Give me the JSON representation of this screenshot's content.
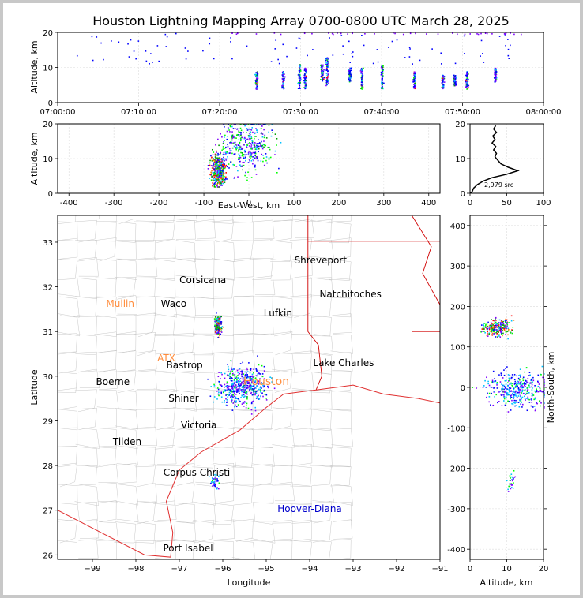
{
  "colors": {
    "frame_border": "#c8c8c8",
    "coastline": "#e03030",
    "state_border": "#d00000",
    "county_border": "#c8c8c8",
    "city_label": "#000000",
    "station_label": "#ff8c3c",
    "storm_label": "#0000cc",
    "src_colors": [
      "#0000ff",
      "#7f00ff",
      "#00c0ff",
      "#00ff00",
      "#00a000",
      "#ff0000",
      "#ff8000"
    ]
  },
  "chart_data": [
    {
      "id": "time-altitude",
      "type": "scatter",
      "title": "Houston Lightning Mapping Array 0700-0800 UTC March 28, 2025",
      "xlabel": "",
      "ylabel": "Altitude, km",
      "xlim": [
        0,
        60
      ],
      "ylim": [
        0,
        20
      ],
      "x_tick_values": [
        0,
        10,
        20,
        30,
        40,
        50,
        60
      ],
      "x_tick_labels": [
        "07:00:00",
        "07:10:00",
        "07:20:00",
        "07:30:00",
        "07:40:00",
        "07:50:00",
        "08:00:00"
      ],
      "y_ticks": [
        0,
        10,
        20
      ],
      "grid": true,
      "columns": [
        {
          "t": 24.5,
          "alt": [
            4,
            9
          ]
        },
        {
          "t": 27.8,
          "alt": [
            4,
            9
          ]
        },
        {
          "t": 29.8,
          "alt": [
            4,
            11
          ]
        },
        {
          "t": 30.5,
          "alt": [
            4,
            10
          ]
        },
        {
          "t": 32.6,
          "alt": [
            6,
            11
          ]
        },
        {
          "t": 33.2,
          "alt": [
            5,
            13
          ]
        },
        {
          "t": 36.0,
          "alt": [
            6,
            10
          ]
        },
        {
          "t": 37.5,
          "alt": [
            4,
            10
          ]
        },
        {
          "t": 40.0,
          "alt": [
            4,
            11
          ]
        },
        {
          "t": 44.0,
          "alt": [
            4,
            9
          ]
        },
        {
          "t": 47.5,
          "alt": [
            4,
            8
          ]
        },
        {
          "t": 49.0,
          "alt": [
            5,
            8
          ]
        },
        {
          "t": 50.5,
          "alt": [
            4,
            9
          ]
        },
        {
          "t": 54.0,
          "alt": [
            6,
            10
          ]
        }
      ]
    },
    {
      "id": "ew-altitude",
      "type": "scatter",
      "xlabel": "East-West, km",
      "ylabel": "Altitude, km",
      "xlim": [
        -425,
        425
      ],
      "ylim": [
        0,
        20
      ],
      "x_ticks": [
        -400,
        -300,
        -200,
        -100,
        0,
        100,
        200,
        300,
        400
      ],
      "y_ticks": [
        0,
        10,
        20
      ],
      "grid": true,
      "clusters": [
        {
          "x": -70,
          "sx": 8,
          "alt": 7,
          "salt": 2.5
        },
        {
          "x": -5,
          "sx": 28,
          "alt": 14,
          "salt": 4
        }
      ]
    },
    {
      "id": "altitude-histogram",
      "type": "line",
      "xlim": [
        0,
        100
      ],
      "ylim": [
        0,
        20
      ],
      "x_ticks": [
        0,
        50,
        100
      ],
      "y_ticks": [
        0,
        10,
        20
      ],
      "annotation": "2,979 src",
      "profile": [
        [
          0,
          0
        ],
        [
          3,
          0.5
        ],
        [
          5,
          1.5
        ],
        [
          10,
          2.5
        ],
        [
          18,
          3.5
        ],
        [
          30,
          4.5
        ],
        [
          50,
          5.5
        ],
        [
          65,
          6.5
        ],
        [
          52,
          7.5
        ],
        [
          42,
          8.5
        ],
        [
          38,
          9.5
        ],
        [
          34,
          10.5
        ],
        [
          36,
          11.5
        ],
        [
          32,
          12.5
        ],
        [
          35,
          13.5
        ],
        [
          30,
          14.5
        ],
        [
          34,
          15.5
        ],
        [
          31,
          16.5
        ],
        [
          36,
          17.5
        ],
        [
          32,
          18.5
        ],
        [
          35,
          19.5
        ]
      ]
    },
    {
      "id": "plan-view",
      "type": "scatter",
      "xlabel": "Longitude",
      "ylabel": "Latitude",
      "xlim": [
        -99.8,
        -91
      ],
      "ylim": [
        25.9,
        33.6
      ],
      "x_ticks": [
        -99,
        -98,
        -97,
        -96,
        -95,
        -94,
        -93,
        -92,
        -91
      ],
      "x_tick_labels": [
        "−99",
        "−98",
        "−97",
        "−96",
        "−95",
        "−94",
        "−93",
        "−92",
        "−91"
      ],
      "y_ticks": [
        26,
        27,
        28,
        29,
        30,
        31,
        32,
        33
      ],
      "city_labels": [
        {
          "name": "Shreveport",
          "lon": -93.75,
          "lat": 32.52,
          "kind": "city"
        },
        {
          "name": "Corsicana",
          "lon": -96.46,
          "lat": 32.08,
          "kind": "city"
        },
        {
          "name": "Natchitoches",
          "lon": -93.06,
          "lat": 31.76,
          "kind": "city"
        },
        {
          "name": "Mullin",
          "lon": -98.36,
          "lat": 31.55,
          "kind": "station"
        },
        {
          "name": "Waco",
          "lon": -97.13,
          "lat": 31.55,
          "kind": "city"
        },
        {
          "name": "Lufkin",
          "lon": -94.73,
          "lat": 31.34,
          "kind": "city"
        },
        {
          "name": "ATX",
          "lon": -97.3,
          "lat": 30.33,
          "kind": "station"
        },
        {
          "name": "Bastrop",
          "lon": -96.88,
          "lat": 30.17,
          "kind": "city"
        },
        {
          "name": "Lake Charles",
          "lon": -93.22,
          "lat": 30.23,
          "kind": "city"
        },
        {
          "name": "Boerne",
          "lon": -98.53,
          "lat": 29.8,
          "kind": "city"
        },
        {
          "name": "Houston",
          "lon": -95.0,
          "lat": 29.8,
          "kind": "station"
        },
        {
          "name": "Shiner",
          "lon": -96.9,
          "lat": 29.43,
          "kind": "city"
        },
        {
          "name": "Victoria",
          "lon": -96.55,
          "lat": 28.83,
          "kind": "city"
        },
        {
          "name": "Tilden",
          "lon": -98.2,
          "lat": 28.46,
          "kind": "city"
        },
        {
          "name": "Corpus Christi",
          "lon": -96.6,
          "lat": 27.77,
          "kind": "city"
        },
        {
          "name": "Hoover-Diana",
          "lon": -94.0,
          "lat": 26.96,
          "kind": "storm"
        },
        {
          "name": "Port Isabel",
          "lon": -96.8,
          "lat": 26.08,
          "kind": "city"
        }
      ],
      "clusters": [
        {
          "lon": -96.12,
          "slon": 0.04,
          "lat": 31.16,
          "slat": 0.1
        },
        {
          "lon": -95.55,
          "slon": 0.28,
          "lat": 29.78,
          "slat": 0.22
        },
        {
          "lon": -96.2,
          "slon": 0.05,
          "lat": 27.65,
          "slat": 0.08
        }
      ]
    },
    {
      "id": "altitude-ns",
      "type": "scatter",
      "xlabel": "Altitude, km",
      "ylabel": "North-South, km",
      "xlim": [
        0,
        20
      ],
      "ylim": [
        -425,
        425
      ],
      "x_ticks": [
        0,
        10,
        20
      ],
      "y_ticks": [
        -400,
        -300,
        -200,
        -100,
        0,
        100,
        200,
        300,
        400
      ],
      "grid": true,
      "clusters": [
        {
          "alt": 7,
          "salt": 2,
          "y": 150,
          "sy": 10
        },
        {
          "alt": 13,
          "salt": 4.5,
          "y": -5,
          "sy": 22
        },
        {
          "alt": 11,
          "salt": 0.6,
          "y": -235,
          "sy": 12
        }
      ]
    }
  ]
}
